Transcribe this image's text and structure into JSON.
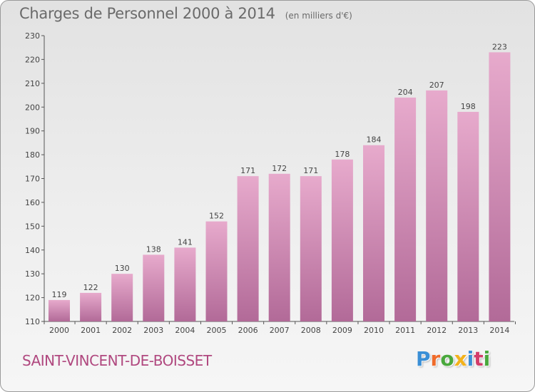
{
  "header": {
    "title": "Charges de Personnel 2000 à 2014",
    "subtitle": "(en milliers d'€)"
  },
  "footer": {
    "commune": "SAINT-VINCENT-DE-BOISSET",
    "logo_text": "Proxiti"
  },
  "colors": {
    "bar_top": "#e7aacc",
    "bar_bottom": "#b26a98",
    "title": "#6a6a6a",
    "commune": "#b0487f",
    "logo": [
      "#3a8fd6",
      "#ef6b2a",
      "#49a83c",
      "#f3b21b",
      "#3a8fd6",
      "#d33c6a",
      "#49a83c"
    ]
  },
  "chart_data": {
    "type": "bar",
    "title": "Charges de Personnel 2000 à 2014",
    "subtitle": "(en milliers d'€)",
    "categories": [
      "2000",
      "2001",
      "2002",
      "2003",
      "2004",
      "2005",
      "2006",
      "2007",
      "2008",
      "2009",
      "2010",
      "2011",
      "2012",
      "2013",
      "2014"
    ],
    "values": [
      119,
      122,
      130,
      138,
      141,
      152,
      171,
      172,
      171,
      178,
      184,
      204,
      207,
      198,
      223
    ],
    "ylim": [
      110,
      230
    ],
    "yticks": [
      110,
      120,
      130,
      140,
      150,
      160,
      170,
      180,
      190,
      200,
      210,
      220,
      230
    ],
    "grid": false,
    "data_labels": true
  }
}
